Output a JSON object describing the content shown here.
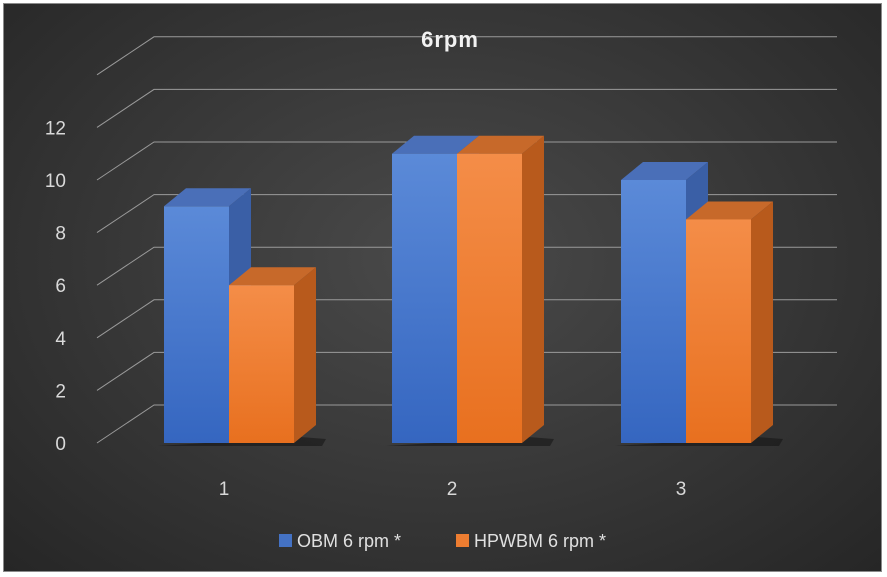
{
  "chart_data": {
    "type": "bar",
    "title": "6rpm",
    "categories": [
      "1",
      "2",
      "3"
    ],
    "series": [
      {
        "name": "OBM 6 rpm *",
        "values": [
          9,
          11,
          10
        ],
        "color": "#4472c4"
      },
      {
        "name": "HPWBM 6 rpm *",
        "values": [
          6,
          11,
          8.5
        ],
        "color": "#ed7d31"
      }
    ],
    "ylim": [
      0,
      12
    ],
    "yticks": [
      "0",
      "2",
      "4",
      "6",
      "8",
      "10",
      "12"
    ],
    "grid": true,
    "legend": "bottom",
    "style": "3d-clustered-column"
  }
}
